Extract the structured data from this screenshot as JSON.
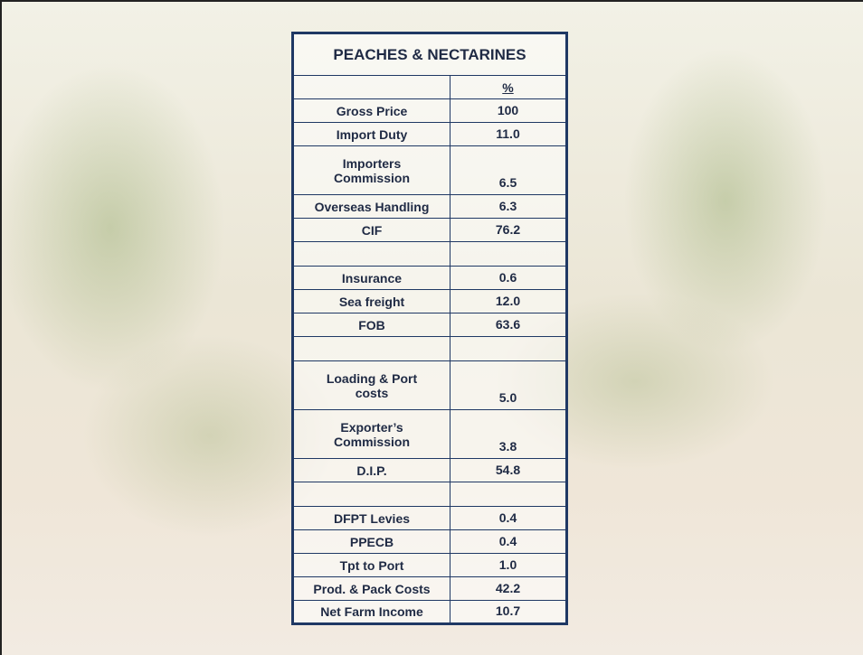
{
  "table": {
    "title": "PEACHES & NECTARINES",
    "column_header": "%",
    "groups": [
      [
        [
          "Gross Price",
          "100"
        ],
        [
          "Import Duty",
          "11.0"
        ],
        [
          "Importers\nCommission",
          "6.5"
        ],
        [
          "Overseas Handling",
          "6.3"
        ],
        [
          "CIF",
          "76.2"
        ]
      ],
      [
        [
          "Insurance",
          "0.6"
        ],
        [
          "Sea freight",
          "12.0"
        ],
        [
          "FOB",
          "63.6"
        ]
      ],
      [
        [
          "Loading & Port\ncosts",
          "5.0"
        ],
        [
          "Exporter’s\nCommission",
          "3.8"
        ],
        [
          "D.I.P.",
          "54.8"
        ]
      ],
      [
        [
          "DFPT Levies",
          "0.4"
        ],
        [
          "PPECB",
          "0.4"
        ],
        [
          "Tpt to Port",
          "1.0"
        ],
        [
          "Prod. & Pack Costs",
          "42.2"
        ],
        [
          "Net Farm Income",
          "10.7"
        ]
      ]
    ]
  }
}
